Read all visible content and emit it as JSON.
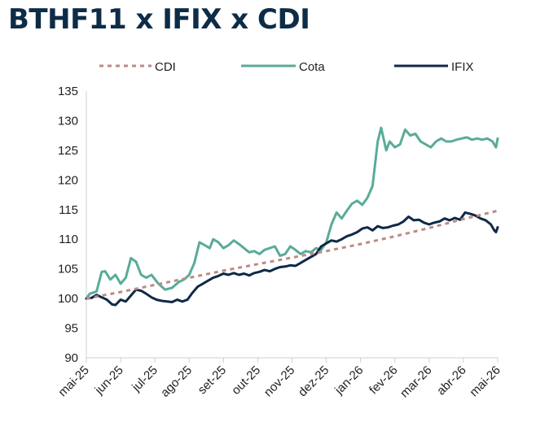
{
  "chart_data": {
    "type": "line",
    "title": "BTHF11 x IFIX x CDI",
    "xlabel": "",
    "ylabel": "",
    "x_ticks": [
      "mai-25",
      "jun-25",
      "jul-25",
      "ago-25",
      "set-25",
      "out-25",
      "nov-25",
      "dez-25",
      "jan-26",
      "fev-26",
      "mar-26",
      "abr-26",
      "mai-26"
    ],
    "y_ticks": [
      90,
      95,
      100,
      105,
      110,
      115,
      120,
      125,
      130,
      135
    ],
    "ylim": [
      90,
      135
    ],
    "xlim": [
      0,
      12
    ],
    "grid": false,
    "legend_position": "top",
    "series": [
      {
        "name": "CDI",
        "color": "#bc8a86",
        "style": "dashed",
        "x": [
          0,
          1,
          2,
          3,
          4,
          5,
          6,
          7,
          8,
          9,
          10,
          11,
          12
        ],
        "values": [
          100.0,
          101.1,
          102.3,
          103.5,
          104.7,
          105.8,
          106.9,
          108.0,
          109.2,
          110.5,
          111.9,
          113.4,
          114.8
        ]
      },
      {
        "name": "Cota",
        "color": "#5aab99",
        "style": "solid",
        "x": [
          0,
          0.1,
          0.3,
          0.45,
          0.55,
          0.7,
          0.85,
          1.0,
          1.15,
          1.3,
          1.45,
          1.6,
          1.75,
          1.9,
          2.1,
          2.3,
          2.5,
          2.7,
          2.85,
          3.0,
          3.15,
          3.3,
          3.45,
          3.6,
          3.7,
          3.85,
          4.0,
          4.15,
          4.3,
          4.45,
          4.6,
          4.75,
          4.9,
          5.05,
          5.2,
          5.35,
          5.5,
          5.65,
          5.8,
          5.95,
          6.1,
          6.25,
          6.4,
          6.55,
          6.7,
          6.85,
          7.0,
          7.15,
          7.3,
          7.45,
          7.6,
          7.75,
          7.9,
          8.05,
          8.2,
          8.35,
          8.5,
          8.6,
          8.75,
          8.85,
          9.0,
          9.15,
          9.3,
          9.45,
          9.6,
          9.75,
          9.9,
          10.05,
          10.2,
          10.35,
          10.5,
          10.65,
          10.8,
          10.95,
          11.1,
          11.25,
          11.4,
          11.55,
          11.7,
          11.85,
          11.95,
          12.0
        ],
        "values": [
          100.0,
          100.8,
          101.2,
          104.5,
          104.6,
          103.2,
          104.0,
          102.5,
          103.5,
          106.8,
          106.2,
          104.0,
          103.5,
          104.0,
          102.5,
          101.5,
          101.8,
          102.8,
          103.2,
          104.0,
          106.0,
          109.5,
          109.0,
          108.5,
          110.0,
          109.5,
          108.5,
          109.0,
          109.8,
          109.2,
          108.5,
          107.8,
          108.0,
          107.5,
          108.2,
          108.5,
          108.8,
          107.2,
          107.5,
          108.8,
          108.2,
          107.5,
          108.0,
          107.8,
          108.5,
          108.2,
          109.5,
          112.5,
          114.5,
          113.5,
          114.8,
          116.0,
          116.5,
          115.8,
          117.0,
          119.0,
          126.5,
          128.8,
          125.0,
          126.5,
          125.5,
          126.0,
          128.5,
          127.5,
          127.8,
          126.5,
          126.0,
          125.5,
          126.5,
          127.0,
          126.5,
          126.5,
          126.8,
          127.0,
          127.2,
          126.8,
          127.0,
          126.8,
          127.0,
          126.5,
          125.5,
          127.0
        ]
      },
      {
        "name": "IFIX",
        "color": "#0e2a47",
        "style": "solid",
        "x": [
          0,
          0.15,
          0.3,
          0.45,
          0.6,
          0.75,
          0.85,
          1.0,
          1.15,
          1.3,
          1.45,
          1.6,
          1.75,
          1.9,
          2.05,
          2.2,
          2.35,
          2.5,
          2.65,
          2.8,
          2.95,
          3.1,
          3.25,
          3.4,
          3.55,
          3.7,
          3.85,
          4.0,
          4.15,
          4.3,
          4.45,
          4.6,
          4.75,
          4.9,
          5.05,
          5.2,
          5.35,
          5.5,
          5.65,
          5.8,
          5.95,
          6.1,
          6.25,
          6.4,
          6.55,
          6.7,
          6.85,
          7.0,
          7.15,
          7.3,
          7.45,
          7.6,
          7.75,
          7.9,
          8.05,
          8.2,
          8.35,
          8.5,
          8.65,
          8.8,
          8.95,
          9.1,
          9.25,
          9.4,
          9.55,
          9.7,
          9.85,
          10.0,
          10.15,
          10.3,
          10.45,
          10.6,
          10.75,
          10.9,
          11.05,
          11.2,
          11.35,
          11.5,
          11.65,
          11.8,
          11.9,
          11.95,
          12.0
        ],
        "values": [
          100.0,
          100.1,
          100.6,
          100.2,
          99.8,
          99.0,
          98.9,
          99.8,
          99.5,
          100.5,
          101.5,
          101.3,
          100.8,
          100.2,
          99.8,
          99.6,
          99.5,
          99.4,
          99.8,
          99.5,
          99.8,
          101.0,
          102.0,
          102.5,
          103.0,
          103.5,
          103.8,
          104.2,
          104.0,
          104.3,
          104.0,
          104.2,
          103.9,
          104.3,
          104.5,
          104.8,
          104.6,
          105.0,
          105.3,
          105.4,
          105.6,
          105.5,
          106.0,
          106.5,
          107.0,
          107.5,
          108.8,
          109.3,
          109.8,
          109.6,
          110.0,
          110.5,
          110.8,
          111.2,
          111.8,
          112.0,
          111.5,
          112.2,
          111.9,
          112.0,
          112.3,
          112.5,
          113.0,
          113.8,
          113.2,
          113.3,
          112.8,
          112.5,
          112.8,
          113.0,
          113.5,
          113.2,
          113.6,
          113.3,
          114.5,
          114.3,
          114.0,
          113.5,
          113.2,
          112.5,
          111.5,
          111.2,
          112.0
        ]
      }
    ]
  }
}
